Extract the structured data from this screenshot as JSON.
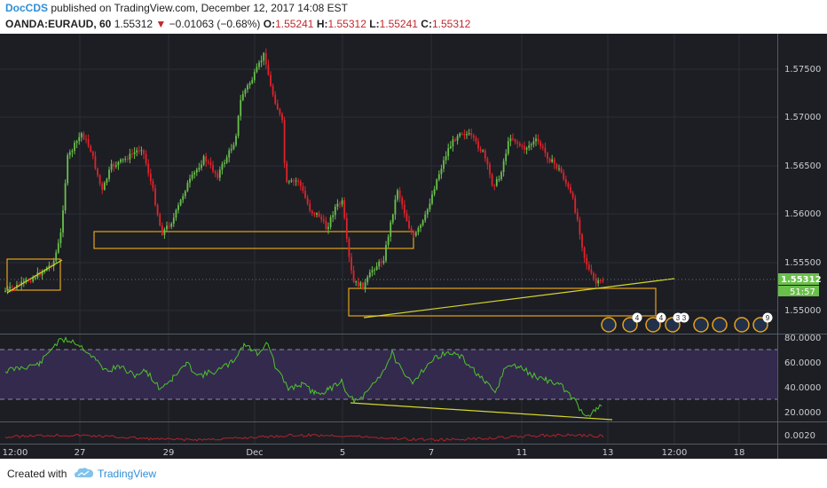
{
  "header": {
    "author": "DocCDS",
    "published_text": " published on TradingView.com, December 12, 2017 14:08 EST",
    "symbol": "OANDA:EURAUD, 60",
    "last": "1.55312",
    "change_arrow": "▼",
    "change": "−0.01063 (−0.68%)",
    "o_label": "O:",
    "o_value": "1.55241",
    "h_label": "H:",
    "h_value": "1.55312",
    "l_label": "L:",
    "l_value": "1.55241",
    "c_label": "C:",
    "c_value": "1.55312"
  },
  "price_axis": {
    "ticks": [
      "1.57500",
      "1.57000",
      "1.56500",
      "1.56000",
      "1.55500",
      "1.55000"
    ],
    "last_price_tag": "1.55312",
    "countdown_tag": "51:57"
  },
  "rsi_axis": {
    "ticks": [
      "80.0000",
      "60.0000",
      "40.0000",
      "20.0000"
    ]
  },
  "macd_axis": {
    "ticks": [
      "0.0020"
    ]
  },
  "time_axis": {
    "labels": [
      "12:00",
      "27",
      "29",
      "Dec",
      "5",
      "7",
      "11",
      "13",
      "12:00",
      "18"
    ]
  },
  "events": {
    "badges": [
      "4",
      "4",
      "3",
      "3",
      "9"
    ]
  },
  "footer": {
    "created_with": "Created with",
    "brand": "TradingView"
  },
  "colors": {
    "background": "#1c1e24",
    "up_candle": "#6abf4b",
    "down_candle": "#e0222a",
    "rsi_line": "#4fc22b",
    "trendline": "#d6d62a",
    "zone_border": "#e6a21b",
    "rsi_band": "#332a4e",
    "macd_line": "#b0242b",
    "brand_blue": "#2e8fd6"
  }
}
